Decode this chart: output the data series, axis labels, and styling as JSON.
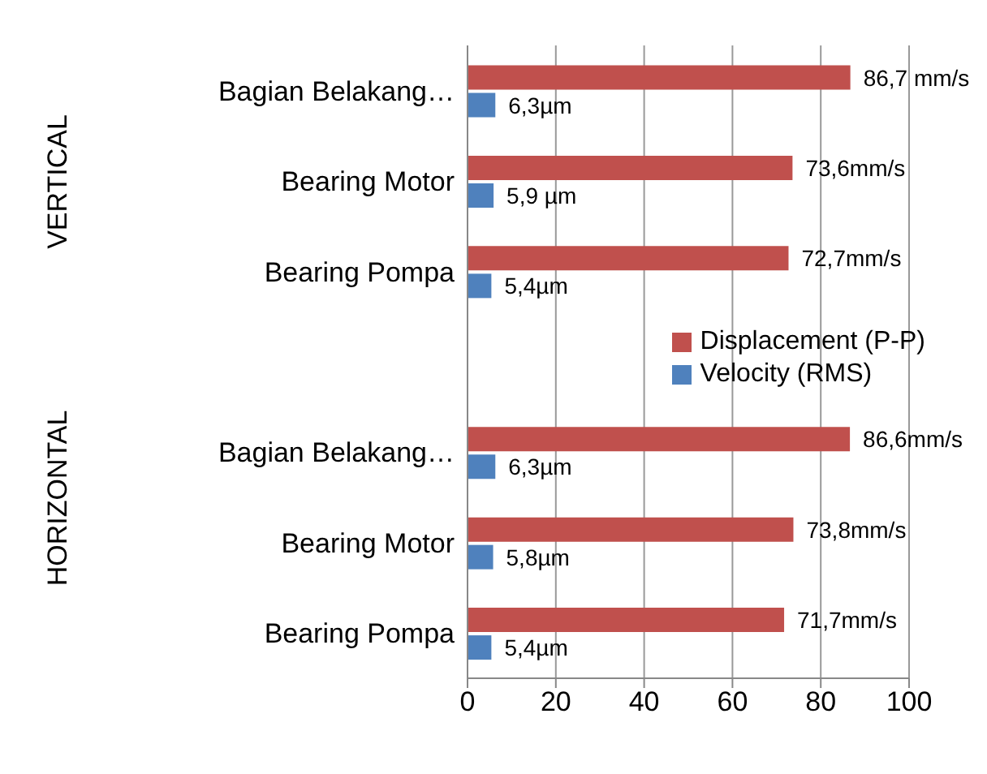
{
  "chart_data": {
    "type": "bar",
    "orientation": "horizontal",
    "categories": [
      "Bagian Belakang…",
      "Bearing Motor",
      "Bearing Pompa",
      null,
      "Bagian Belakang…",
      "Bearing Motor",
      "Bearing Pompa"
    ],
    "series": [
      {
        "name": "Displacement (P-P)",
        "color": "#c0504d",
        "values": [
          86.7,
          73.6,
          72.7,
          null,
          86.6,
          73.8,
          71.7
        ],
        "value_labels": [
          "86,7 mm/s",
          "73,6mm/s",
          "72,7mm/s",
          null,
          "86,6mm/s",
          "73,8mm/s",
          "71,7mm/s"
        ]
      },
      {
        "name": "Velocity (RMS)",
        "color": "#4f81bd",
        "values": [
          6.3,
          5.9,
          5.4,
          null,
          6.3,
          5.8,
          5.4
        ],
        "value_labels": [
          "6,3µm",
          "5,9 µm",
          "5,4µm",
          null,
          "6,3µm",
          "5,8µm",
          "5,4µm"
        ]
      }
    ],
    "annotations": [
      "VERTICAL",
      "HORIZONTAL"
    ],
    "xlim": [
      0,
      100
    ],
    "xticks": [
      0,
      20,
      40,
      60,
      80,
      100
    ],
    "grid": "x",
    "legend": "right"
  }
}
